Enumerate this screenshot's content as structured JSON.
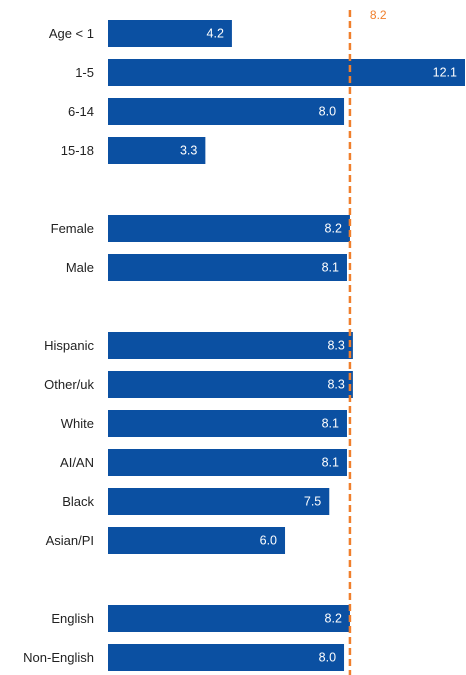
{
  "colors": {
    "bar": "#0b50a2",
    "reference_line": "#f07f2c",
    "value_text": "#ffffff",
    "label_text": "#222222",
    "background": "#ffffff"
  },
  "chart_data": {
    "type": "bar",
    "orientation": "horizontal",
    "title": "",
    "xlabel": "",
    "ylabel": "",
    "xlim": [
      0,
      12.1
    ],
    "grid": false,
    "legend": "none",
    "groups": [
      {
        "bars": [
          {
            "label": "Age < 1",
            "value": 4.2,
            "value_label": "4.2"
          },
          {
            "label": "1-5",
            "value": 12.1,
            "value_label": "12.1"
          },
          {
            "label": "6-14",
            "value": 8.0,
            "value_label": "8.0"
          },
          {
            "label": "15-18",
            "value": 3.3,
            "value_label": "3.3"
          }
        ]
      },
      {
        "bars": [
          {
            "label": "Female",
            "value": 8.2,
            "value_label": "8.2"
          },
          {
            "label": "Male",
            "value": 8.1,
            "value_label": "8.1"
          }
        ]
      },
      {
        "bars": [
          {
            "label": "Hispanic",
            "value": 8.3,
            "value_label": "8.3"
          },
          {
            "label": "Other/uk",
            "value": 8.3,
            "value_label": "8.3"
          },
          {
            "label": "White",
            "value": 8.1,
            "value_label": "8.1"
          },
          {
            "label": "AI/AN",
            "value": 8.1,
            "value_label": "8.1"
          },
          {
            "label": "Black",
            "value": 7.5,
            "value_label": "7.5"
          },
          {
            "label": "Asian/PI",
            "value": 6.0,
            "value_label": "6.0"
          }
        ]
      },
      {
        "bars": [
          {
            "label": "English",
            "value": 8.2,
            "value_label": "8.2"
          },
          {
            "label": "Non-English",
            "value": 8.0,
            "value_label": "8.0"
          }
        ]
      }
    ],
    "reference_line": {
      "value": 8.2,
      "label": "8.2",
      "style": "dashed"
    }
  }
}
